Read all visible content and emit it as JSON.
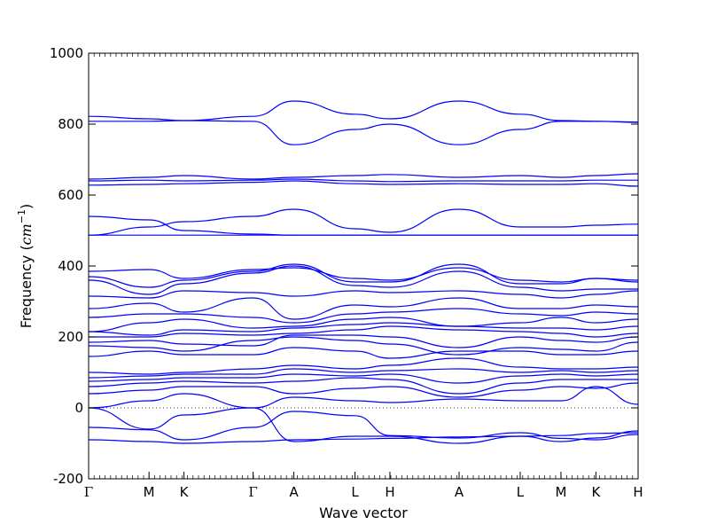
{
  "chart_data": {
    "type": "line",
    "title": "",
    "xlabel": "Wave vector",
    "ylabel_text": "Frequency (",
    "ylabel_unit": "cm",
    "ylabel_exponent": "−1",
    "ylabel_close": ")",
    "ylim": [
      -200,
      1000
    ],
    "yticks": [
      -200,
      0,
      200,
      400,
      600,
      800,
      1000
    ],
    "grid": false,
    "line_color": "#0000ff",
    "zero_line": true,
    "xlim": [
      0,
      7.55
    ],
    "high_symmetry_points": [
      {
        "label": "Γ",
        "x": 0.0
      },
      {
        "label": "M",
        "x": 0.83
      },
      {
        "label": "K",
        "x": 1.31
      },
      {
        "label": "Γ",
        "x": 2.26
      },
      {
        "label": "A",
        "x": 2.82
      },
      {
        "label": "L",
        "x": 3.66
      },
      {
        "label": "H",
        "x": 4.14
      },
      {
        "label": "A",
        "x": 5.09
      },
      {
        "label": "L",
        "x": 5.93
      },
      {
        "label": "M",
        "x": 6.49
      },
      {
        "label": "K",
        "x": 6.97
      },
      {
        "label": "H",
        "x": 7.55
      }
    ],
    "series": [
      {
        "values": [
          -90,
          -95,
          -100,
          -95,
          -90,
          -88,
          -86,
          -82,
          -80,
          -78,
          -72,
          -70
        ]
      },
      {
        "values": [
          -55,
          -62,
          -90,
          -55,
          -10,
          -22,
          -78,
          -85,
          -70,
          -86,
          -90,
          -75
        ]
      },
      {
        "values": [
          0,
          -60,
          -20,
          0,
          -95,
          -80,
          -80,
          -100,
          -80,
          -95,
          -85,
          -65
        ]
      },
      {
        "values": [
          0,
          20,
          40,
          0,
          30,
          20,
          15,
          25,
          20,
          20,
          60,
          10
        ]
      },
      {
        "values": [
          40,
          50,
          60,
          60,
          40,
          55,
          60,
          30,
          50,
          60,
          55,
          70
        ]
      },
      {
        "values": [
          60,
          70,
          75,
          70,
          75,
          85,
          80,
          40,
          70,
          80,
          80,
          80
        ]
      },
      {
        "values": [
          75,
          80,
          85,
          85,
          95,
          90,
          95,
          70,
          90,
          95,
          90,
          95
        ]
      },
      {
        "values": [
          85,
          90,
          95,
          95,
          110,
          100,
          105,
          110,
          100,
          105,
          100,
          105
        ]
      },
      {
        "values": [
          100,
          95,
          100,
          110,
          120,
          110,
          120,
          140,
          115,
          110,
          110,
          115
        ]
      },
      {
        "values": [
          145,
          160,
          150,
          150,
          170,
          160,
          140,
          160,
          160,
          150,
          150,
          160
        ]
      },
      {
        "values": [
          175,
          170,
          160,
          190,
          200,
          190,
          180,
          150,
          170,
          165,
          160,
          185
        ]
      },
      {
        "values": [
          185,
          190,
          180,
          175,
          205,
          205,
          200,
          170,
          200,
          190,
          185,
          200
        ]
      },
      {
        "values": [
          200,
          200,
          210,
          205,
          210,
          220,
          230,
          220,
          215,
          210,
          200,
          210
        ]
      },
      {
        "values": [
          215,
          205,
          220,
          215,
          225,
          235,
          240,
          230,
          225,
          225,
          220,
          230
        ]
      },
      {
        "values": [
          215,
          240,
          250,
          225,
          230,
          250,
          255,
          230,
          240,
          255,
          240,
          250
        ]
      },
      {
        "values": [
          255,
          265,
          265,
          255,
          240,
          265,
          270,
          280,
          265,
          260,
          270,
          265
        ]
      },
      {
        "values": [
          280,
          295,
          270,
          310,
          250,
          290,
          285,
          310,
          280,
          280,
          290,
          285
        ]
      },
      {
        "values": [
          315,
          310,
          330,
          325,
          315,
          330,
          325,
          330,
          320,
          310,
          320,
          330
        ]
      },
      {
        "values": [
          360,
          320,
          350,
          380,
          400,
          345,
          340,
          385,
          340,
          330,
          335,
          335
        ]
      },
      {
        "values": [
          370,
          340,
          360,
          385,
          405,
          355,
          355,
          405,
          350,
          350,
          365,
          355
        ]
      },
      {
        "values": [
          385,
          390,
          365,
          390,
          395,
          365,
          360,
          395,
          360,
          355,
          365,
          360
        ]
      },
      {
        "values": [
          487,
          487,
          487,
          487,
          487,
          487,
          487,
          487,
          487,
          487,
          487,
          487
        ]
      },
      {
        "values": [
          487,
          510,
          525,
          540,
          560,
          505,
          495,
          560,
          510,
          510,
          515,
          518
        ]
      },
      {
        "values": [
          540,
          530,
          500,
          490,
          487,
          487,
          487,
          487,
          487,
          487,
          487,
          487
        ]
      },
      {
        "values": [
          628,
          630,
          632,
          636,
          640,
          632,
          630,
          632,
          630,
          630,
          632,
          625
        ]
      },
      {
        "values": [
          640,
          642,
          640,
          642,
          645,
          640,
          638,
          640,
          640,
          640,
          642,
          642
        ]
      },
      {
        "values": [
          645,
          650,
          655,
          645,
          650,
          655,
          658,
          650,
          655,
          650,
          655,
          660
        ]
      },
      {
        "values": [
          808,
          808,
          810,
          808,
          742,
          785,
          800,
          742,
          785,
          808,
          808,
          805
        ]
      },
      {
        "values": [
          822,
          815,
          810,
          822,
          865,
          828,
          815,
          865,
          828,
          810,
          808,
          806
        ]
      }
    ]
  }
}
